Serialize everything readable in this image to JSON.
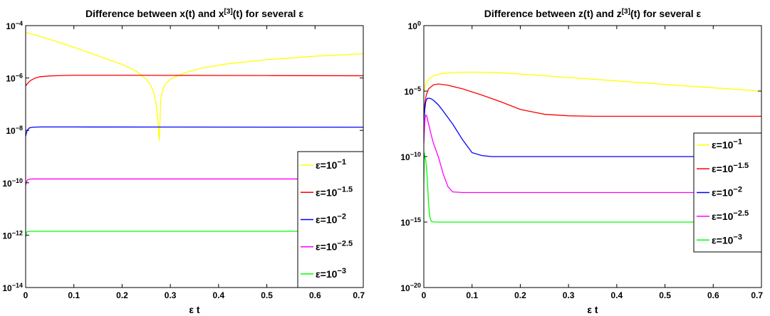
{
  "chart_data": [
    {
      "type": "line",
      "title": "Difference between x(t) and x[3](t) for several ε",
      "title_main": "Difference between x(t) and x",
      "title_sup": "[3]",
      "title_end": "(t) for several ε",
      "xlabel": "ε t",
      "ylabel": "",
      "xlim": [
        0,
        0.7
      ],
      "ylim": [
        1e-14,
        0.0001
      ],
      "yscale": "log",
      "x_ticks": [
        "0",
        "0.1",
        "0.2",
        "0.3",
        "0.4",
        "0.5",
        "0.6",
        "0.7"
      ],
      "y_ticks": [
        {
          "base": "10",
          "exp": "−4",
          "value": 0.0001
        },
        {
          "base": "10",
          "exp": "−6",
          "value": 1e-06
        },
        {
          "base": "10",
          "exp": "−8",
          "value": 1e-08
        },
        {
          "base": "10",
          "exp": "−10",
          "value": 1e-10
        },
        {
          "base": "10",
          "exp": "−12",
          "value": 1e-12
        },
        {
          "base": "10",
          "exp": "−14",
          "value": 1e-14
        }
      ],
      "legend_position": "lower-right",
      "grid": false,
      "series": [
        {
          "name": "ε=10−1",
          "name_base": "ε=10",
          "name_exp": "−1",
          "color": "#ffff00",
          "x": [
            0,
            0.02,
            0.05,
            0.1,
            0.15,
            0.2,
            0.23,
            0.25,
            0.26,
            0.265,
            0.27,
            0.274,
            0.277,
            0.28,
            0.285,
            0.29,
            0.3,
            0.33,
            0.37,
            0.42,
            0.5,
            0.6,
            0.7
          ],
          "y": [
            5.5e-05,
            4.4e-05,
            3e-05,
            1.5e-05,
            7e-06,
            3.3e-06,
            1.8e-06,
            9e-07,
            5e-07,
            3e-07,
            1.2e-07,
            2.5e-08,
            4e-09,
            1.5e-07,
            4e-07,
            6e-07,
            9e-07,
            1.6e-06,
            2.5e-06,
            3.5e-06,
            5e-06,
            6.8e-06,
            8.4e-06
          ]
        },
        {
          "name": "ε=10−1.5",
          "name_base": "ε=10",
          "name_exp": "−1.5",
          "color": "#ff0000",
          "x": [
            0,
            0.005,
            0.01,
            0.02,
            0.03,
            0.05,
            0.08,
            0.1,
            0.2,
            0.3,
            0.4,
            0.5,
            0.6,
            0.7
          ],
          "y": [
            5e-07,
            6.5e-07,
            8e-07,
            1e-06,
            1.12e-06,
            1.2e-06,
            1.25e-06,
            1.27e-06,
            1.27e-06,
            1.26e-06,
            1.25e-06,
            1.24e-06,
            1.23e-06,
            1.22e-06
          ]
        },
        {
          "name": "ε=10−2",
          "name_base": "ε=10",
          "name_exp": "−2",
          "color": "#0000ff",
          "x": [
            0,
            0.002,
            0.004,
            0.008,
            0.015,
            0.03,
            0.1,
            0.3,
            0.5,
            0.7
          ],
          "y": [
            6e-09,
            8.5e-09,
            1.05e-08,
            1.25e-08,
            1.32e-08,
            1.35e-08,
            1.35e-08,
            1.34e-08,
            1.33e-08,
            1.32e-08
          ]
        },
        {
          "name": "ε=10−2.5",
          "name_base": "ε=10",
          "name_exp": "−2.5",
          "color": "#ff00ff",
          "x": [
            0,
            0.002,
            0.004,
            0.008,
            0.015,
            0.1,
            0.4,
            0.7
          ],
          "y": [
            8e-11,
            1.1e-10,
            1.3e-10,
            1.38e-10,
            1.4e-10,
            1.4e-10,
            1.4e-10,
            1.4e-10
          ]
        },
        {
          "name": "ε=10−3",
          "name_base": "ε=10",
          "name_exp": "−3",
          "color": "#00ff00",
          "x": [
            0,
            0.001,
            0.002,
            0.004,
            0.01,
            0.1,
            0.4,
            0.7
          ],
          "y": [
            8e-13,
            1.1e-12,
            1.3e-12,
            1.38e-12,
            1.4e-12,
            1.4e-12,
            1.4e-12,
            1.4e-12
          ]
        }
      ]
    },
    {
      "type": "line",
      "title": "Difference between z(t) and z[3](t) for several ε",
      "title_main": "Difference between z(t) and z",
      "title_sup": "[3]",
      "title_end": "(t) for several ε",
      "xlabel": "ε t",
      "ylabel": "",
      "xlim": [
        0,
        0.7
      ],
      "ylim": [
        1e-20,
        1
      ],
      "yscale": "log",
      "x_ticks": [
        "0",
        "0.1",
        "0.2",
        "0.3",
        "0.4",
        "0.5",
        "0.6",
        "0.7"
      ],
      "y_ticks": [
        {
          "base": "10",
          "exp": "0",
          "value": 1
        },
        {
          "base": "10",
          "exp": "−5",
          "value": 1e-05
        },
        {
          "base": "10",
          "exp": "−10",
          "value": 1e-10
        },
        {
          "base": "10",
          "exp": "−15",
          "value": 1e-15
        },
        {
          "base": "10",
          "exp": "−20",
          "value": 1e-20
        }
      ],
      "legend_position": "right",
      "grid": false,
      "series": [
        {
          "name": "ε=10−1",
          "name_base": "ε=10",
          "name_exp": "−1",
          "color": "#ffff00",
          "x": [
            0,
            0.005,
            0.01,
            0.02,
            0.04,
            0.07,
            0.1,
            0.15,
            0.2,
            0.3,
            0.4,
            0.5,
            0.6,
            0.7
          ],
          "y": [
            1e-05,
            4e-05,
            8e-05,
            0.00015,
            0.00023,
            0.00027,
            0.00028,
            0.00026,
            0.0002,
            0.00011,
            6e-05,
            3.2e-05,
            1.8e-05,
            1e-05
          ]
        },
        {
          "name": "ε=10−1.5",
          "name_base": "ε=10",
          "name_exp": "−1.5",
          "color": "#ff0000",
          "x": [
            0,
            0.002,
            0.005,
            0.01,
            0.02,
            0.03,
            0.05,
            0.08,
            0.12,
            0.16,
            0.2,
            0.25,
            0.3,
            0.35,
            0.4,
            0.5,
            0.6,
            0.7
          ],
          "y": [
            1e-07,
            1e-06,
            5e-06,
            1.5e-05,
            3e-05,
            3.5e-05,
            2.8e-05,
            1.5e-05,
            5e-06,
            1.5e-06,
            4e-07,
            1.7e-07,
            1.3e-07,
            1.2e-07,
            1.2e-07,
            1.2e-07,
            1.2e-07,
            1.2e-07
          ]
        },
        {
          "name": "ε=10−2",
          "name_base": "ε=10",
          "name_exp": "−2",
          "color": "#0000ff",
          "x": [
            0,
            0.002,
            0.004,
            0.007,
            0.01,
            0.015,
            0.02,
            0.03,
            0.04,
            0.06,
            0.08,
            0.1,
            0.12,
            0.14,
            0.16,
            0.2,
            0.3,
            0.4,
            0.5,
            0.6,
            0.7
          ],
          "y": [
            5e-08,
            4e-07,
            1.6e-06,
            2.7e-06,
            2.9e-06,
            2.6e-06,
            2e-06,
            9e-07,
            3e-07,
            3e-08,
            2e-09,
            2e-10,
            1.2e-10,
            1e-10,
            1e-10,
            1e-10,
            1e-10,
            1e-10,
            1e-10,
            1e-10,
            1e-10
          ]
        },
        {
          "name": "ε=10−2.5",
          "name_base": "ε=10",
          "name_exp": "−2.5",
          "color": "#ff00ff",
          "x": [
            0,
            0.002,
            0.004,
            0.006,
            0.01,
            0.015,
            0.02,
            0.03,
            0.04,
            0.05,
            0.06,
            0.08,
            0.2,
            0.4,
            0.7
          ],
          "y": [
            1e-09,
            5e-08,
            1.5e-07,
            1.3e-07,
            3e-08,
            5e-09,
            1e-09,
            1e-10,
            5e-12,
            5e-13,
            2e-13,
            1.8e-13,
            1.8e-13,
            1.8e-13,
            1.8e-13
          ]
        },
        {
          "name": "ε=10−3",
          "name_base": "ε=10",
          "name_exp": "−3",
          "color": "#00ff00",
          "x": [
            0,
            0.001,
            0.002,
            0.004,
            0.006,
            0.008,
            0.01,
            0.012,
            0.015,
            0.02,
            0.03,
            0.1,
            0.4,
            0.7
          ],
          "y": [
            1e-12,
            2e-10,
            1e-10,
            5e-11,
            1e-11,
            5e-13,
            2e-14,
            3e-15,
            1.2e-15,
            1e-15,
            1e-15,
            1e-15,
            1e-15,
            1e-15
          ]
        }
      ]
    }
  ]
}
